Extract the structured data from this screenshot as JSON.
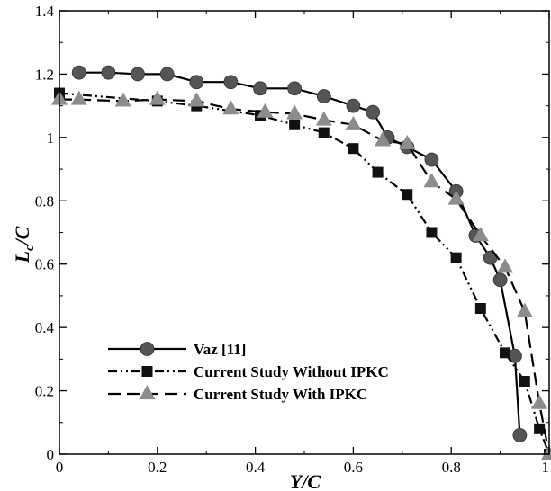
{
  "chart_data": {
    "type": "line",
    "title": "",
    "xlabel": "Y/C",
    "ylabel": {
      "main": "L",
      "sub": "c",
      "tail": "/C"
    },
    "xlim": [
      0,
      1
    ],
    "ylim": [
      0,
      1.4
    ],
    "x_ticks": [
      "0",
      "0.2",
      "0.4",
      "0.6",
      "0.8",
      "1"
    ],
    "y_ticks": [
      "0",
      "0.2",
      "0.4",
      "0.6",
      "0.8",
      "1",
      "1.2",
      "1.4"
    ],
    "grid": false,
    "legend_position": "bottom-left",
    "series": [
      {
        "name": "Vaz [11]",
        "line": "solid",
        "marker": "circle",
        "color": "#555555",
        "points": [
          [
            0.04,
            1.205
          ],
          [
            0.1,
            1.205
          ],
          [
            0.16,
            1.2
          ],
          [
            0.22,
            1.2
          ],
          [
            0.28,
            1.175
          ],
          [
            0.35,
            1.175
          ],
          [
            0.41,
            1.155
          ],
          [
            0.48,
            1.155
          ],
          [
            0.54,
            1.13
          ],
          [
            0.6,
            1.1
          ],
          [
            0.64,
            1.08
          ],
          [
            0.67,
            1.0
          ],
          [
            0.71,
            0.97
          ],
          [
            0.76,
            0.93
          ],
          [
            0.81,
            0.83
          ],
          [
            0.85,
            0.69
          ],
          [
            0.88,
            0.62
          ],
          [
            0.9,
            0.55
          ],
          [
            0.93,
            0.31
          ],
          [
            0.94,
            0.06
          ]
        ]
      },
      {
        "name": "Current Study Without IPKC",
        "line": "dash-dot-dot",
        "marker": "square",
        "color": "#111111",
        "points": [
          [
            0.0,
            1.14
          ],
          [
            0.2,
            1.115
          ],
          [
            0.28,
            1.1
          ],
          [
            0.41,
            1.07
          ],
          [
            0.48,
            1.04
          ],
          [
            0.54,
            1.015
          ],
          [
            0.6,
            0.965
          ],
          [
            0.65,
            0.89
          ],
          [
            0.71,
            0.82
          ],
          [
            0.76,
            0.7
          ],
          [
            0.81,
            0.62
          ],
          [
            0.86,
            0.46
          ],
          [
            0.91,
            0.32
          ],
          [
            0.95,
            0.23
          ],
          [
            0.98,
            0.08
          ],
          [
            1.0,
            0.0
          ]
        ]
      },
      {
        "name": "Current Study With IPKC",
        "line": "dashed",
        "marker": "triangle",
        "color": "#8c8c8c",
        "points": [
          [
            0.0,
            1.12
          ],
          [
            0.04,
            1.12
          ],
          [
            0.13,
            1.115
          ],
          [
            0.2,
            1.12
          ],
          [
            0.28,
            1.115
          ],
          [
            0.35,
            1.09
          ],
          [
            0.42,
            1.08
          ],
          [
            0.48,
            1.075
          ],
          [
            0.54,
            1.055
          ],
          [
            0.6,
            1.04
          ],
          [
            0.66,
            0.99
          ],
          [
            0.71,
            0.98
          ],
          [
            0.76,
            0.86
          ],
          [
            0.81,
            0.805
          ],
          [
            0.86,
            0.69
          ],
          [
            0.91,
            0.59
          ],
          [
            0.95,
            0.45
          ],
          [
            0.98,
            0.16
          ],
          [
            1.0,
            0.0
          ]
        ]
      }
    ]
  }
}
